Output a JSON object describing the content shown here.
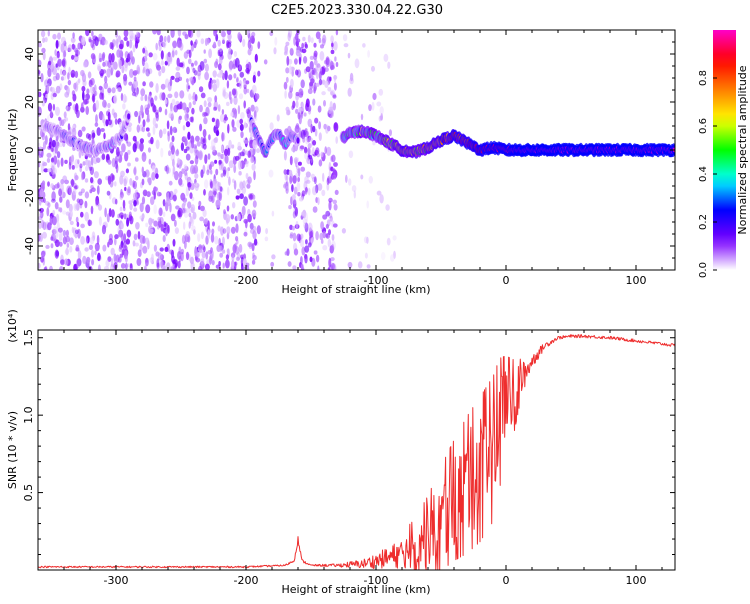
{
  "title": "C2E5.2023.330.04.22.G30",
  "chart_data": [
    {
      "type": "heatmap",
      "xlabel": "Height of straight line (km)",
      "ylabel": "Frequency (Hz)",
      "xlim": [
        -360,
        130
      ],
      "ylim": [
        -50,
        50
      ],
      "xticks": [
        -300,
        -200,
        -100,
        0,
        100
      ],
      "yticks": [
        -40,
        -20,
        0,
        20,
        40
      ],
      "colorbar": {
        "label": "Normalized spectral amplitude",
        "range": [
          0.0,
          1.0
        ],
        "ticks": [
          "0.0",
          "0.2",
          "0.4",
          "0.6",
          "0.8"
        ],
        "colors": [
          "#ffffff",
          "#7b00ff",
          "#0000ff",
          "#00ffff",
          "#00ff00",
          "#ffff00",
          "#ff7f00",
          "#ff0000",
          "#ff00c8"
        ]
      },
      "scattered_noise_regions": [
        {
          "x": [
            -360,
            -190
          ],
          "density": "high"
        },
        {
          "x": [
            -185,
            -175
          ],
          "density": "low"
        },
        {
          "x": [
            -170,
            -130
          ],
          "density": "high"
        },
        {
          "x": [
            -125,
            -85
          ],
          "density": "low"
        }
      ],
      "signal_track": {
        "x": [
          -355,
          -345,
          -335,
          -325,
          -315,
          -305,
          -296,
          -290,
          -196,
          -190,
          -185,
          -180,
          -175,
          -170,
          -165,
          -160,
          -126,
          -120,
          -110,
          -100,
          -90,
          -80,
          -70,
          -60,
          -50,
          -40,
          -30,
          -20,
          -10,
          0,
          10,
          20,
          40,
          60,
          80,
          100,
          130
        ],
        "y": [
          10,
          8,
          4,
          1,
          0,
          2,
          6,
          14,
          12,
          4,
          -1,
          5,
          7,
          2,
          6,
          4,
          5,
          7,
          8,
          6,
          3,
          0,
          -1,
          1,
          4,
          6,
          3,
          0,
          1,
          0,
          0,
          0,
          0,
          0,
          0,
          0,
          0
        ],
        "amplitude": [
          0.15,
          0.15,
          0.15,
          0.2,
          0.15,
          0.25,
          0.15,
          0.1,
          0.15,
          0.3,
          0.35,
          0.3,
          0.25,
          0.3,
          0.25,
          0.2,
          0.3,
          0.45,
          0.5,
          0.5,
          0.55,
          0.6,
          0.6,
          0.65,
          0.75,
          0.8,
          0.85,
          0.9,
          0.95,
          0.95,
          1,
          1,
          1,
          1,
          1,
          1,
          1
        ]
      }
    },
    {
      "type": "line",
      "xlabel": "Height of straight line (km)",
      "ylabel": "SNR (10 * v/v)",
      "y_multiplier": "(x10⁴)",
      "xlim": [
        -360,
        130
      ],
      "ylim": [
        0,
        1.55
      ],
      "xticks": [
        -300,
        -200,
        -100,
        0,
        100
      ],
      "yticks": [
        0.5,
        1.0,
        1.5
      ],
      "color": "#ee2d2d",
      "series": [
        {
          "x": [
            -360,
            -300,
            -250,
            -200,
            -170,
            -163,
            -160,
            -157,
            -150,
            -130,
            -110,
            -100,
            -90,
            -80,
            -70,
            -60,
            -50,
            -40,
            -30,
            -20,
            -10,
            -5,
            0,
            5,
            10,
            20,
            30,
            40,
            50,
            60,
            80,
            100,
            130
          ],
          "y": [
            0.02,
            0.02,
            0.02,
            0.02,
            0.03,
            0.06,
            0.2,
            0.06,
            0.03,
            0.03,
            0.04,
            0.06,
            0.08,
            0.11,
            0.15,
            0.22,
            0.33,
            0.45,
            0.55,
            0.65,
            0.78,
            0.95,
            1.02,
            1.1,
            1.2,
            1.35,
            1.45,
            1.5,
            1.51,
            1.51,
            1.5,
            1.48,
            1.45
          ],
          "noise_amplitude": [
            0.005,
            0.005,
            0.005,
            0.005,
            0.005,
            0.01,
            0.02,
            0.01,
            0.005,
            0.01,
            0.03,
            0.05,
            0.07,
            0.1,
            0.14,
            0.2,
            0.26,
            0.3,
            0.34,
            0.36,
            0.36,
            0.32,
            0.28,
            0.2,
            0.12,
            0.05,
            0.02,
            0.01,
            0.01,
            0.01,
            0.01,
            0.01,
            0.01
          ]
        }
      ]
    }
  ]
}
